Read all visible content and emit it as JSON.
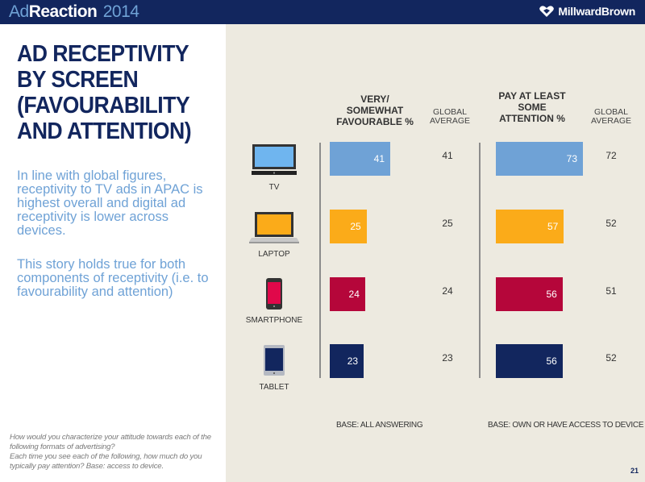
{
  "header": {
    "brand_ad": "Ad",
    "brand_reaction": "Reaction",
    "brand_year": "2014",
    "logo_text": "MillwardBrown",
    "logo_icon": "heart-diamond-icon"
  },
  "left": {
    "title_lines": [
      "AD RECEPTIVITY",
      "BY SCREEN",
      "(FAVOURABILITY",
      "AND ATTENTION)"
    ],
    "paragraph1": "In line with global figures, receptivity to TV ads in APAC is highest overall and digital ad receptivity is lower across devices.",
    "paragraph2": "This story holds true for both components of receptivity (i.e. to favourability and attention)",
    "footnote_line1": "How would you characterize your attitude towards each of the following formats of advertising?",
    "footnote_line2": "Each time you see each of the following, how much do you typically pay attention? Base: access to device."
  },
  "page_number": "21",
  "colors": {
    "navy": "#12265e",
    "light_blue": "#6fa2d6",
    "tv": "#6fa2d6",
    "laptop": "#fbab19",
    "smartphone": "#b5063a",
    "tablet": "#12265e",
    "panel_bg": "#edeae0"
  },
  "chart_data": {
    "type": "bar",
    "orientation": "horizontal",
    "categories": [
      "TV",
      "LAPTOP",
      "SMARTPHONE",
      "TABLET"
    ],
    "category_icons": [
      "tv-icon",
      "laptop-icon",
      "smartphone-icon",
      "tablet-icon"
    ],
    "series": [
      {
        "name": "VERY/ SOMEWHAT FAVOURABLE %",
        "header_lines": [
          "VERY/",
          "SOMEWHAT",
          "FAVOURABLE %"
        ],
        "values": [
          41,
          25,
          24,
          23
        ],
        "global_average_label": [
          "GLOBAL",
          "AVERAGE"
        ],
        "global_average": [
          41,
          25,
          24,
          23
        ],
        "base": "BASE: ALL ANSWERING"
      },
      {
        "name": "PAY AT LEAST SOME ATTENTION %",
        "header_lines": [
          "PAY AT LEAST",
          "SOME",
          "ATTENTION %"
        ],
        "values": [
          73,
          57,
          56,
          56
        ],
        "global_average_label": [
          "GLOBAL",
          "AVERAGE"
        ],
        "global_average": [
          72,
          52,
          51,
          52
        ],
        "base": "BASE: OWN OR HAVE ACCESS TO DEVICE"
      }
    ],
    "xlim": [
      0,
      100
    ],
    "grid": false,
    "legend": "none"
  }
}
